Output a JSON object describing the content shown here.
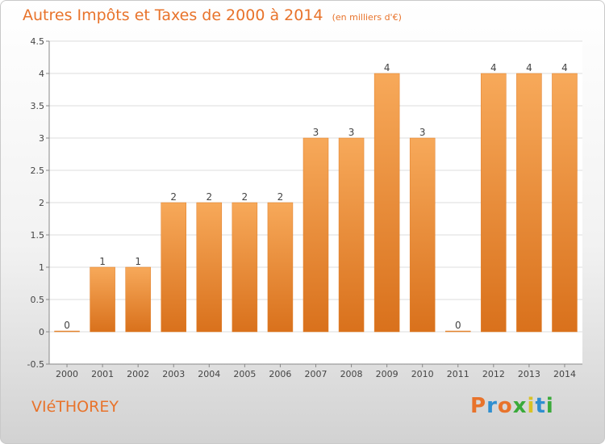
{
  "title": "Autres Impôts et Taxes de 2000 à 2014",
  "unit_note": "(en milliers d'€)",
  "commune": "VIéTHOREY",
  "brand": {
    "letters": [
      "P",
      "r",
      "o",
      "x",
      "i",
      "t",
      "i"
    ],
    "colors": [
      "#e8732b",
      "#2f8fd0",
      "#e8732b",
      "#3aaa3a",
      "#d9c226",
      "#2f8fd0",
      "#3aaa3a"
    ]
  },
  "colors": {
    "bar": "#f08a2e",
    "bar_light": "#f7a95a",
    "bar_dark": "#d9711c",
    "title": "#e8732b"
  },
  "chart_data": {
    "type": "bar",
    "categories": [
      "2000",
      "2001",
      "2002",
      "2003",
      "2004",
      "2005",
      "2006",
      "2007",
      "2008",
      "2009",
      "2010",
      "2011",
      "2012",
      "2013",
      "2014"
    ],
    "values": [
      0,
      1,
      1,
      2,
      2,
      2,
      2,
      3,
      3,
      4,
      3,
      0,
      4,
      4,
      4
    ],
    "data_labels": [
      "0",
      "1",
      "1",
      "2",
      "2",
      "2",
      "2",
      "3",
      "3",
      "4",
      "3",
      "0",
      "4",
      "4",
      "4"
    ],
    "ylim": [
      -0.5,
      4.5
    ],
    "yticks": [
      -0.5,
      0,
      0.5,
      1,
      1.5,
      2,
      2.5,
      3,
      3.5,
      4,
      4.5
    ],
    "ytick_labels": [
      "-0.5",
      "0",
      "0.5",
      "1",
      "1.5",
      "2",
      "2.5",
      "3",
      "3.5",
      "4",
      "4.5"
    ],
    "grid": true
  }
}
